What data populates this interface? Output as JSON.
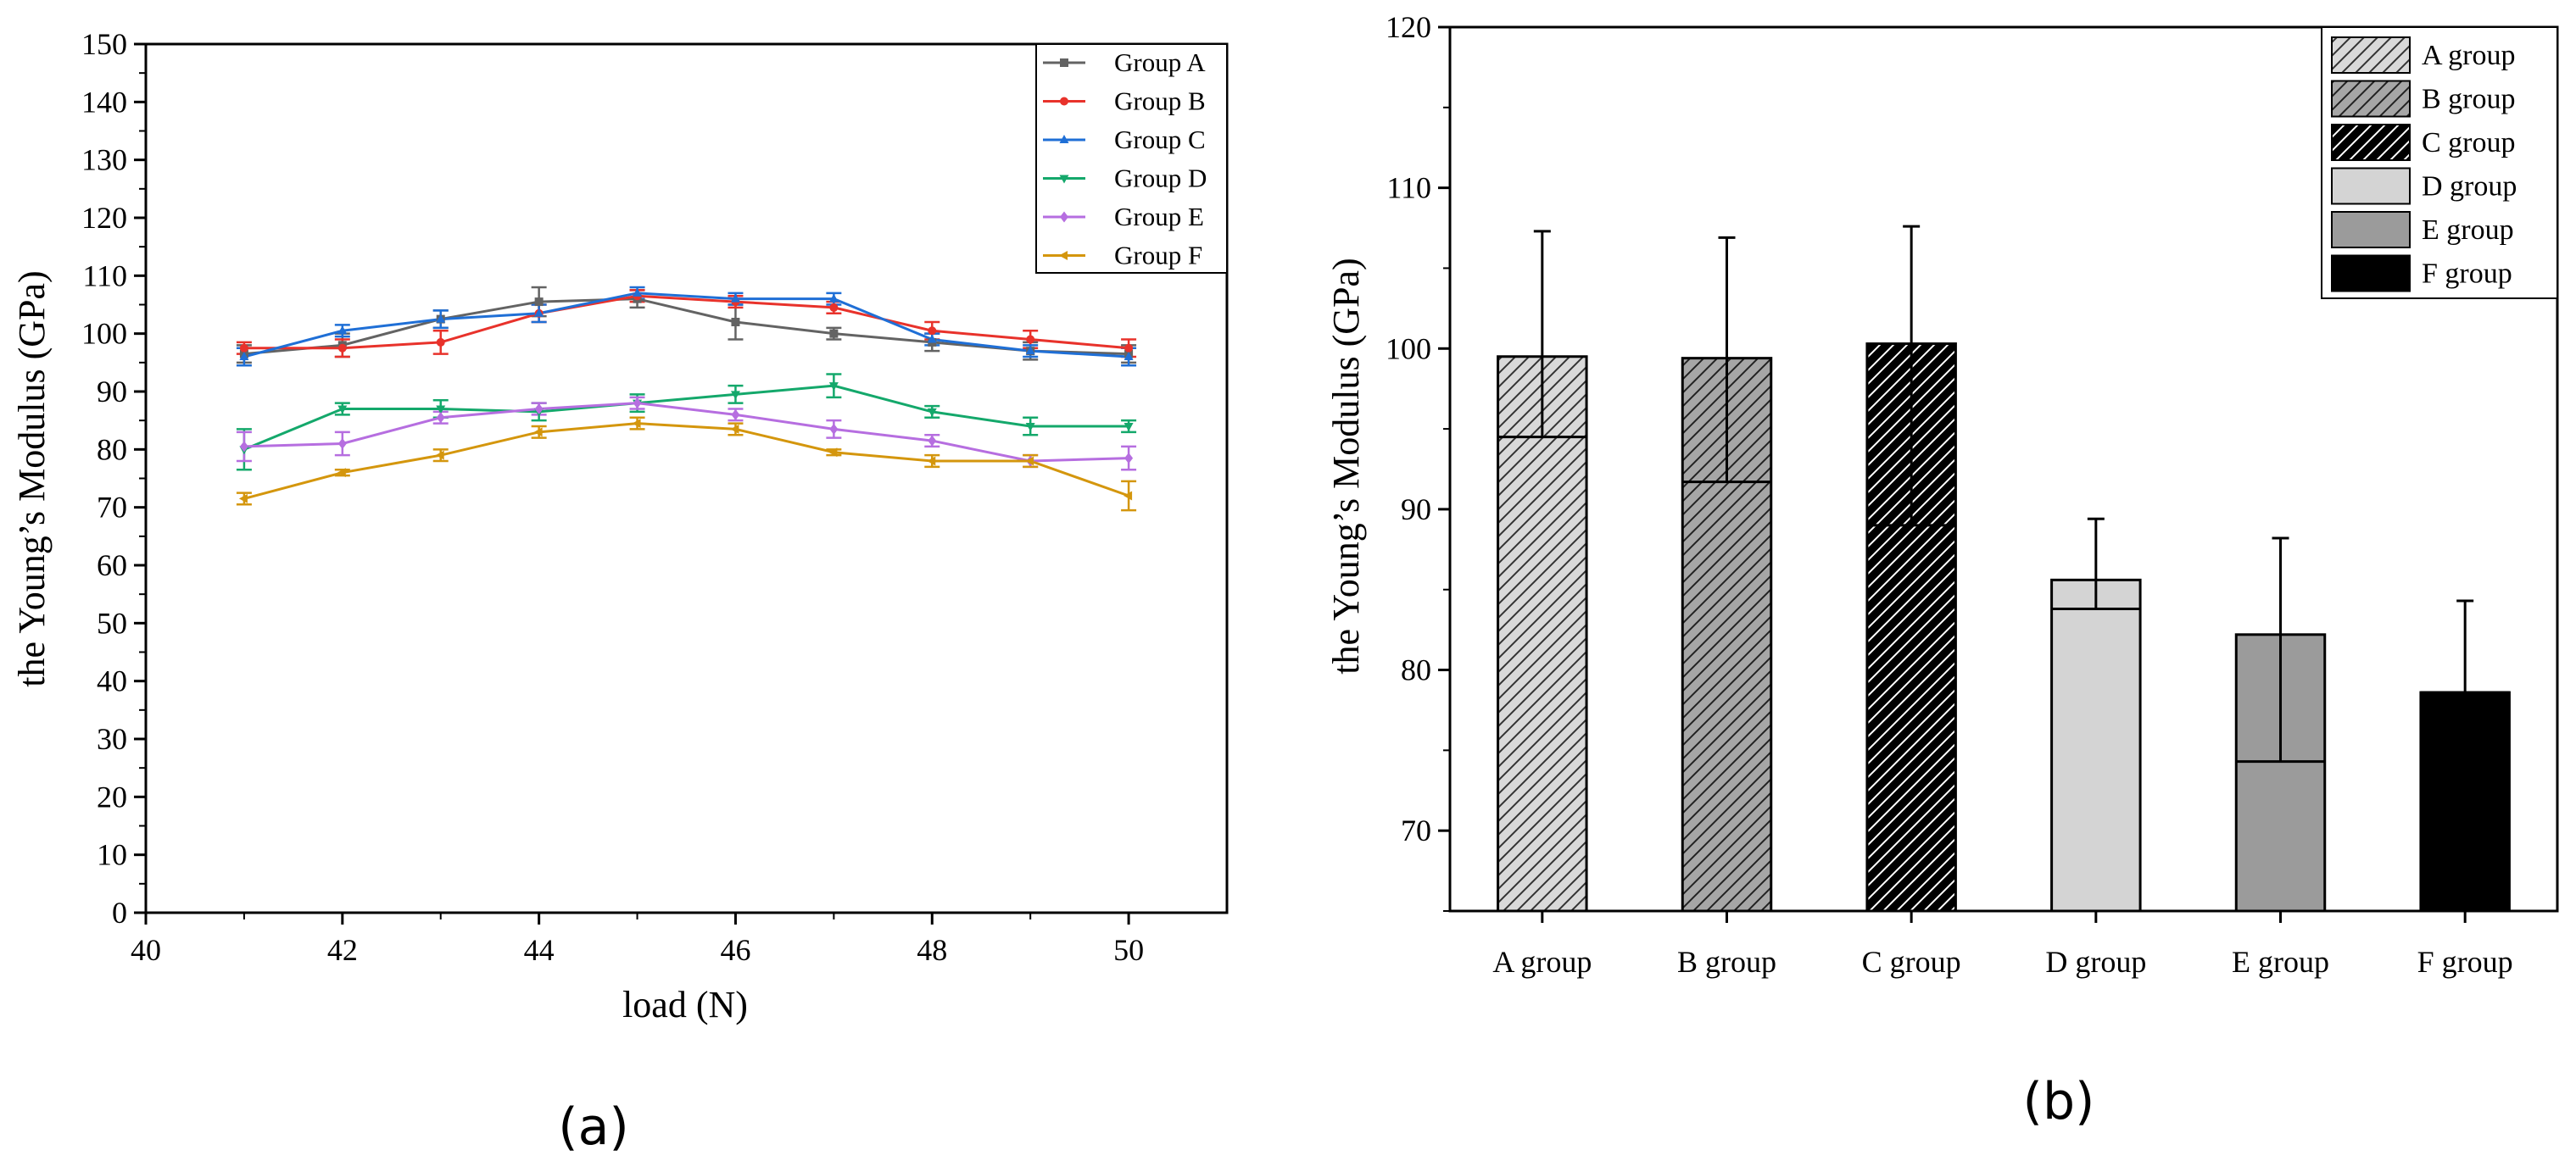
{
  "chart_data": [
    {
      "type": "line",
      "panel_label": "(a)",
      "xlabel": "load (N)",
      "ylabel": "the Young’s Modulus (GPa)",
      "xlim": [
        40,
        51
      ],
      "ylim": [
        0,
        150
      ],
      "x_ticks": [
        40,
        42,
        44,
        46,
        48,
        50
      ],
      "y_ticks": [
        0,
        10,
        20,
        30,
        40,
        50,
        60,
        70,
        80,
        90,
        100,
        110,
        120,
        130,
        140,
        150
      ],
      "legend_position": "top-right",
      "x": [
        41,
        42,
        43,
        44,
        45,
        46,
        47,
        48,
        49,
        50
      ],
      "series": [
        {
          "name": "Group A",
          "color": "#636363",
          "marker": "square",
          "values": [
            96.5,
            98.0,
            102.5,
            105.5,
            106.0,
            102.0,
            100.0,
            98.5,
            97.0,
            96.5
          ],
          "errors": [
            1.5,
            2.0,
            1.5,
            2.5,
            1.5,
            3.0,
            1.0,
            1.5,
            1.5,
            1.5
          ]
        },
        {
          "name": "Group B",
          "color": "#e8322b",
          "marker": "circle",
          "values": [
            97.5,
            97.5,
            98.5,
            103.5,
            106.5,
            105.5,
            104.5,
            100.5,
            99.0,
            97.5
          ],
          "errors": [
            1.0,
            1.5,
            2.0,
            1.5,
            1.0,
            1.0,
            1.0,
            1.5,
            1.5,
            1.5
          ]
        },
        {
          "name": "Group C",
          "color": "#1f6fd6",
          "marker": "triangle-up",
          "values": [
            96.0,
            100.5,
            102.5,
            103.5,
            107.0,
            106.0,
            106.0,
            99.0,
            97.0,
            96.0
          ],
          "errors": [
            1.5,
            1.0,
            1.5,
            1.5,
            1.0,
            1.0,
            1.0,
            1.0,
            1.0,
            1.5
          ]
        },
        {
          "name": "Group D",
          "color": "#14a86b",
          "marker": "triangle-down",
          "values": [
            80.0,
            87.0,
            87.0,
            86.5,
            88.0,
            89.5,
            91.0,
            86.5,
            84.0,
            84.0
          ],
          "errors": [
            3.5,
            1.0,
            1.5,
            1.5,
            1.5,
            1.5,
            2.0,
            1.0,
            1.5,
            1.0
          ]
        },
        {
          "name": "Group E",
          "color": "#b66ee0",
          "marker": "diamond",
          "values": [
            80.5,
            81.0,
            85.5,
            87.0,
            88.0,
            86.0,
            83.5,
            81.5,
            78.0,
            78.5
          ],
          "errors": [
            2.5,
            2.0,
            1.0,
            1.0,
            1.0,
            1.0,
            1.5,
            1.0,
            1.0,
            2.0
          ]
        },
        {
          "name": "Group F",
          "color": "#d4960d",
          "marker": "triangle-left",
          "values": [
            71.5,
            76.0,
            79.0,
            83.0,
            84.5,
            83.5,
            79.5,
            78.0,
            78.0,
            72.0
          ],
          "errors": [
            1.0,
            0.5,
            1.0,
            1.0,
            1.0,
            1.0,
            0.5,
            1.0,
            1.0,
            2.5
          ]
        }
      ]
    },
    {
      "type": "bar",
      "panel_label": "(b)",
      "xlabel": "",
      "ylabel": "the Young’s Modulus (GPa)",
      "ylim": [
        65,
        120
      ],
      "y_ticks": [
        70,
        80,
        90,
        100,
        110,
        120
      ],
      "legend_position": "top-right",
      "categories": [
        "A group",
        "B group",
        "C group",
        "D group",
        "E group",
        "F group"
      ],
      "values": [
        99.5,
        99.4,
        100.3,
        85.6,
        82.2,
        78.6
      ],
      "errors": [
        {
          "low": 94.5,
          "high": 107.3
        },
        {
          "low": 91.7,
          "high": 106.9
        },
        {
          "low": 89.0,
          "high": 107.6
        },
        {
          "low": 83.8,
          "high": 89.4
        },
        {
          "low": 74.3,
          "high": 88.2
        },
        {
          "low": 78.6,
          "high": 84.3
        }
      ],
      "fills": [
        {
          "color": "#d9d9d9",
          "hatch": "light"
        },
        {
          "color": "#a6a6a6",
          "hatch": "dark"
        },
        {
          "color": "#000000",
          "hatch": "white"
        },
        {
          "color": "#d4d4d4",
          "hatch": "none"
        },
        {
          "color": "#9b9b9b",
          "hatch": "none"
        },
        {
          "color": "#000000",
          "hatch": "none"
        }
      ],
      "legend": [
        "A group",
        "B group",
        "C group",
        "D group",
        "E group",
        "F group"
      ]
    }
  ]
}
